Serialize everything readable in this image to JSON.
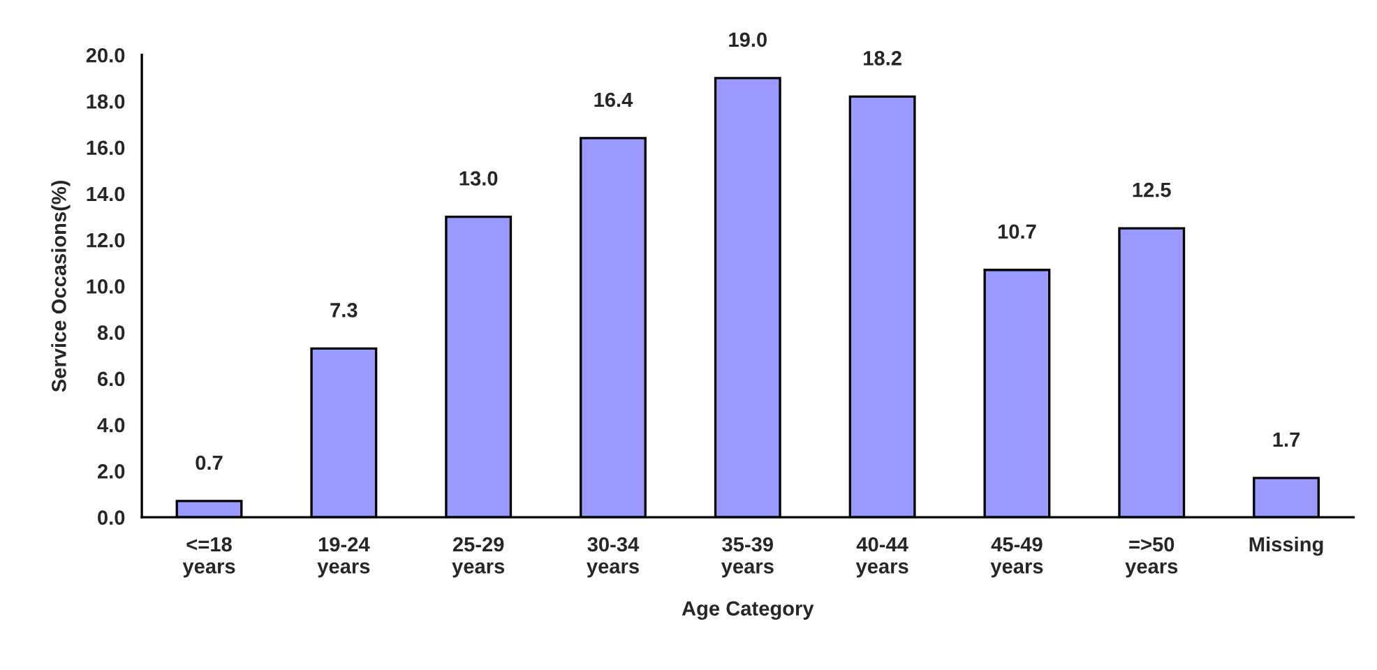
{
  "chart_data": {
    "type": "bar",
    "xlabel": "Age Category",
    "ylabel": "Service Occasions(%)",
    "categories": [
      "<=18\nyears",
      "19-24\nyears",
      "25-29\nyears",
      "30-34\nyears",
      "35-39\nyears",
      "40-44\nyears",
      "45-49\nyears",
      "=>50\nyears",
      "Missing"
    ],
    "values": [
      0.7,
      7.3,
      13.0,
      16.4,
      19.0,
      18.2,
      10.7,
      12.5,
      1.7
    ],
    "value_labels": [
      "0.7",
      "7.3",
      "13.0",
      "16.4",
      "19.0",
      "18.2",
      "10.7",
      "12.5",
      "1.7"
    ],
    "color": "#9999ff",
    "ylim": [
      0,
      20
    ],
    "yticks": [
      {
        "value": 0,
        "label": "0.0"
      },
      {
        "value": 2,
        "label": "2.0"
      },
      {
        "value": 4,
        "label": "4.0"
      },
      {
        "value": 6,
        "label": "6.0"
      },
      {
        "value": 8,
        "label": "8.0"
      },
      {
        "value": 10,
        "label": "10.0"
      },
      {
        "value": 12,
        "label": "12.0"
      },
      {
        "value": 14,
        "label": "14.0"
      },
      {
        "value": 16,
        "label": "16.0"
      },
      {
        "value": 18,
        "label": "18.0"
      },
      {
        "value": 20,
        "label": "20.0"
      }
    ],
    "grid": false
  }
}
